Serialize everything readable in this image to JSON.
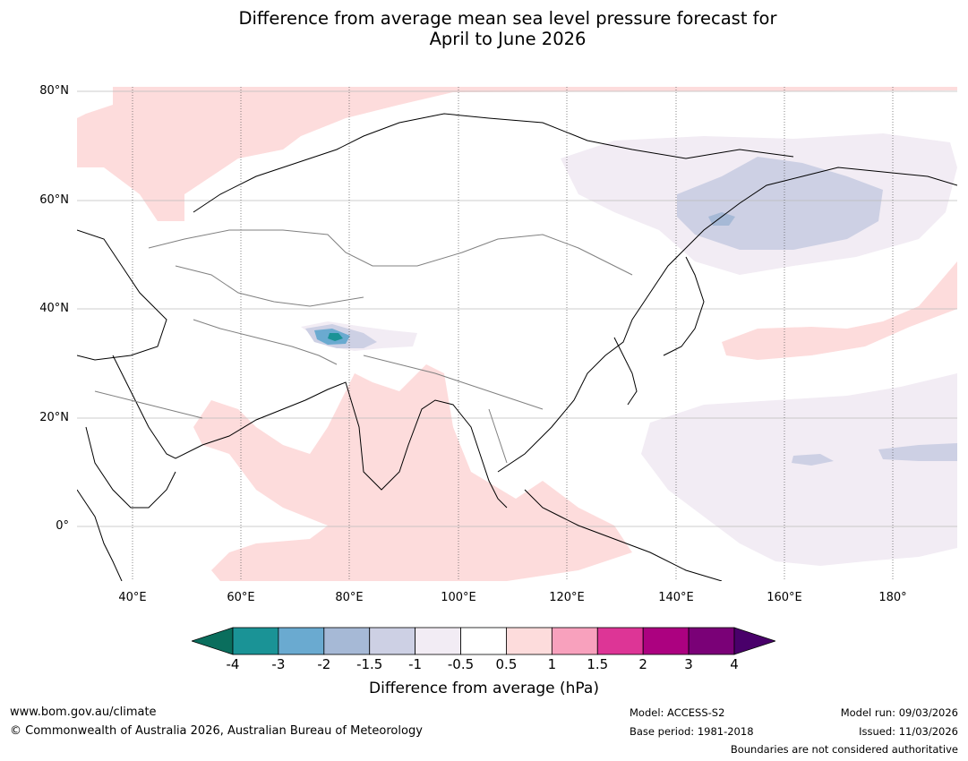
{
  "title": {
    "line1": "Difference from average mean sea level pressure forecast for",
    "line2": "April to June 2026"
  },
  "map": {
    "lat_labels": [
      "80°N",
      "60°N",
      "40°N",
      "20°N",
      "0°"
    ],
    "lon_labels": [
      "40°E",
      "60°E",
      "80°E",
      "100°E",
      "120°E",
      "140°E",
      "160°E",
      "180°"
    ]
  },
  "colorbar": {
    "label": "Difference from average (hPa)",
    "ticks": [
      "-4",
      "-3",
      "-2",
      "-1.5",
      "-1",
      "-0.5",
      "0.5",
      "1",
      "1.5",
      "2",
      "3",
      "4"
    ],
    "colors": [
      "#0a6e5d",
      "#1a9396",
      "#6aaad0",
      "#a6b9d6",
      "#cdd0e4",
      "#f2ecf4",
      "#ffffff",
      "#fddcdc",
      "#f8a1bd",
      "#dd3596",
      "#ac0180",
      "#7a0177",
      "#49006a"
    ]
  },
  "footer": {
    "website": "www.bom.gov.au/climate",
    "copyright": "© Commonwealth of Australia 2026, Australian Bureau of Meteorology",
    "model": "Model: ACCESS-S2",
    "base_period": "Base period: 1981-2018",
    "model_run": "Model run: 09/03/2026",
    "issued": "Issued: 11/03/2026",
    "disclaimer": "Boundaries are not considered authoritative"
  }
}
